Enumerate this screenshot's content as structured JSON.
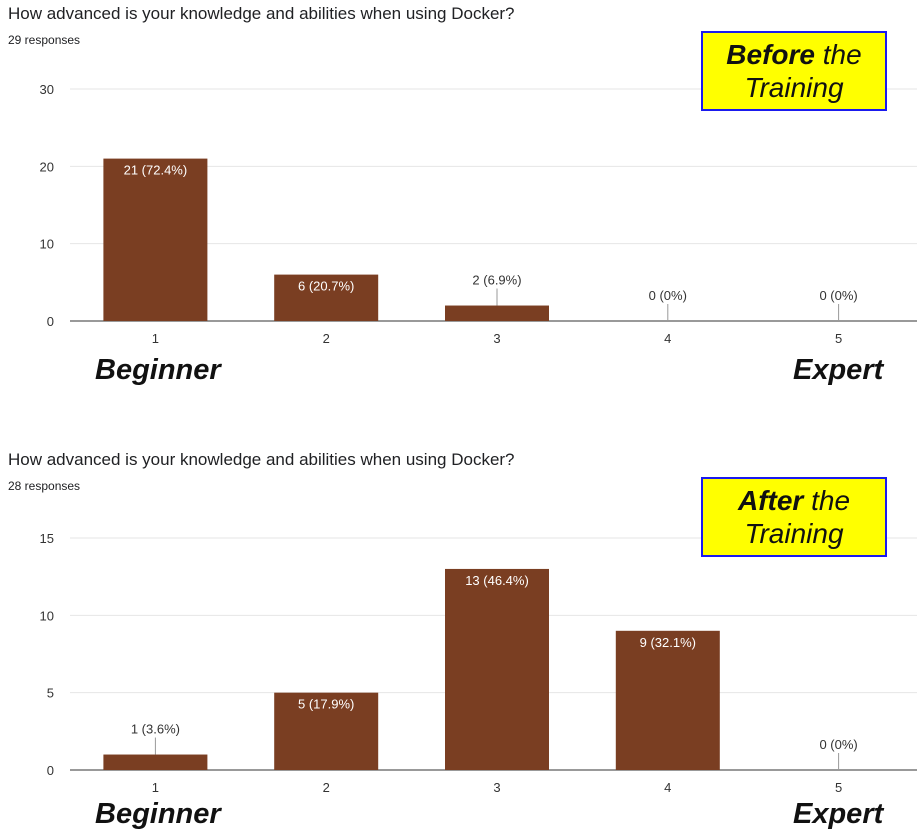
{
  "bar_color": "#7a3e22",
  "callout_color": "#ffff00",
  "callout_border_color": "#1a1aee",
  "chart_data": [
    {
      "type": "bar",
      "title": "How advanced is your knowledge and abilities when using Docker?",
      "subtitle": "29 responses",
      "categories": [
        "1",
        "2",
        "3",
        "4",
        "5"
      ],
      "values": [
        21,
        6,
        2,
        0,
        0
      ],
      "data_labels": [
        "21 (72.4%)",
        "6 (20.7%)",
        "2 (6.9%)",
        "0 (0%)",
        "0 (0%)"
      ],
      "ylim": [
        0,
        30
      ],
      "yticks": [
        0,
        10,
        20,
        30
      ],
      "grid": true,
      "scale_low_label": "Beginner",
      "scale_high_label": "Expert",
      "callout": {
        "strong": "Before",
        "rest": "the",
        "line2": "Training"
      }
    },
    {
      "type": "bar",
      "title": "How advanced is your knowledge and abilities when using Docker?",
      "subtitle": "28 responses",
      "categories": [
        "1",
        "2",
        "3",
        "4",
        "5"
      ],
      "values": [
        1,
        5,
        13,
        9,
        0
      ],
      "data_labels": [
        "1 (3.6%)",
        "5 (17.9%)",
        "13 (46.4%)",
        "9 (32.1%)",
        "0 (0%)"
      ],
      "ylim": [
        0,
        15
      ],
      "yticks": [
        0,
        5,
        10,
        15
      ],
      "grid": true,
      "scale_low_label": "Beginner",
      "scale_high_label": "Expert",
      "callout": {
        "strong": "After",
        "rest": "the",
        "line2": "Training"
      }
    }
  ]
}
